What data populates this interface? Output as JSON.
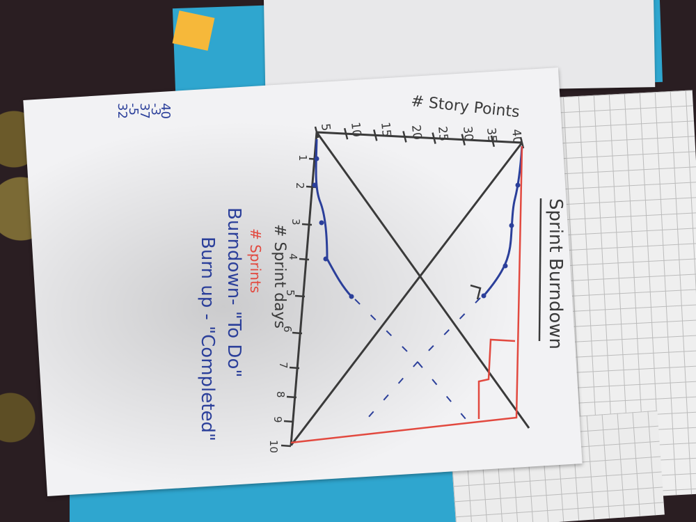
{
  "title": "Sprint Burndown",
  "y_axis_label": "# Story Points",
  "y_ticks": [
    "5",
    "10",
    "15",
    "20",
    "25",
    "30",
    "35",
    "40"
  ],
  "x_ticks": [
    "1",
    "2",
    "3",
    "4",
    "5",
    "6",
    "7",
    "8",
    "9",
    "10"
  ],
  "x_axis_label": "# Sprint days",
  "x_axis_annotation": "# Sprints",
  "legend": {
    "burndown": "Burndown- \"To Do\"",
    "burnup": "Burn up - \"Completed\""
  },
  "calc": [
    "40",
    "-3",
    "37",
    "-5",
    "32"
  ],
  "colors": {
    "ink_black": "#3a3a3a",
    "ink_blue": "#2b3f9a",
    "ink_red": "#e2493f",
    "folder_blue": "#2fa6cf"
  }
}
